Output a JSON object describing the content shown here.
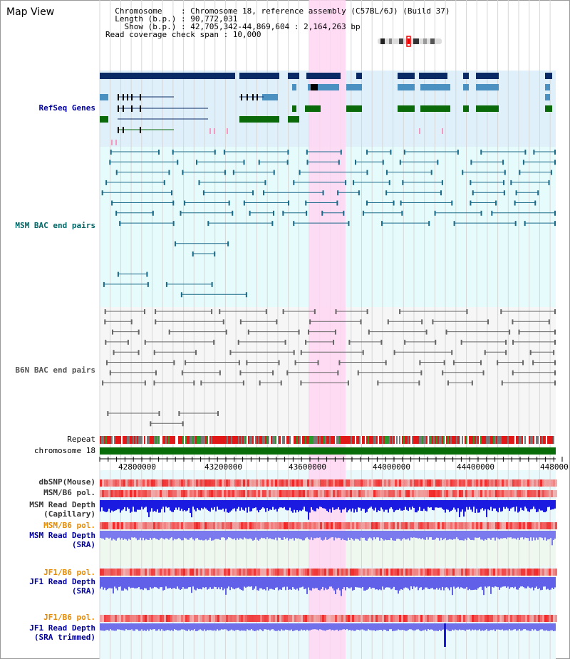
{
  "view": {
    "title": "Map View",
    "info_lines": [
      "  Chromosome    : Chromosome 18, reference assembly (C57BL/6J) (Build 37)",
      "  Length (b.p.) : 90,772,031",
      "    Show (b.p.) : 42,705,342-44,869,604 : 2,164,263 bp",
      "Read coverage check span : 10,000"
    ],
    "chromosome_label": "chromosome 18",
    "repeat_label": "Repeat"
  },
  "tracks": {
    "refseq": "RefSeq Genes",
    "msm_bac": "MSM BAC end pairs",
    "b6n_bac": "B6N BAC end pairs",
    "dbsnp": "dbSNP(Mouse)",
    "msm_b6_pol_1": "MSM/B6 pol.",
    "msm_depth_cap_1": "MSM Read Depth",
    "msm_depth_cap_2": "(Capillary)",
    "msm_b6_pol_2": "MSM/B6 pol.",
    "msm_depth_sra_1": "MSM Read Depth",
    "msm_depth_sra_2": "(SRA)",
    "jf1_b6_pol_1": "JF1/B6 pol.",
    "jf1_depth_sra_1": "JF1 Read Depth",
    "jf1_depth_sra_2": "(SRA)",
    "jf1_b6_pol_2": "JF1/B6 pol.",
    "jf1_depth_trim_1": "JF1 Read Depth",
    "jf1_depth_trim_2": "(SRA trimmed)"
  },
  "axis": {
    "ticks": [
      "42800000",
      "43200000",
      "43600000",
      "44000000",
      "44400000",
      "448000"
    ]
  },
  "colors": {
    "refseq_dark": "#0a2a66",
    "refseq_mid": "#4a90c0",
    "refseq_green": "#0a6a0a",
    "highlight": "#ffd6f2",
    "msm_line": "#1a6a8a",
    "b6n_line": "#666666",
    "label_blue": "#000099",
    "label_orange": "#e68a00",
    "label_teal": "#006666"
  }
}
